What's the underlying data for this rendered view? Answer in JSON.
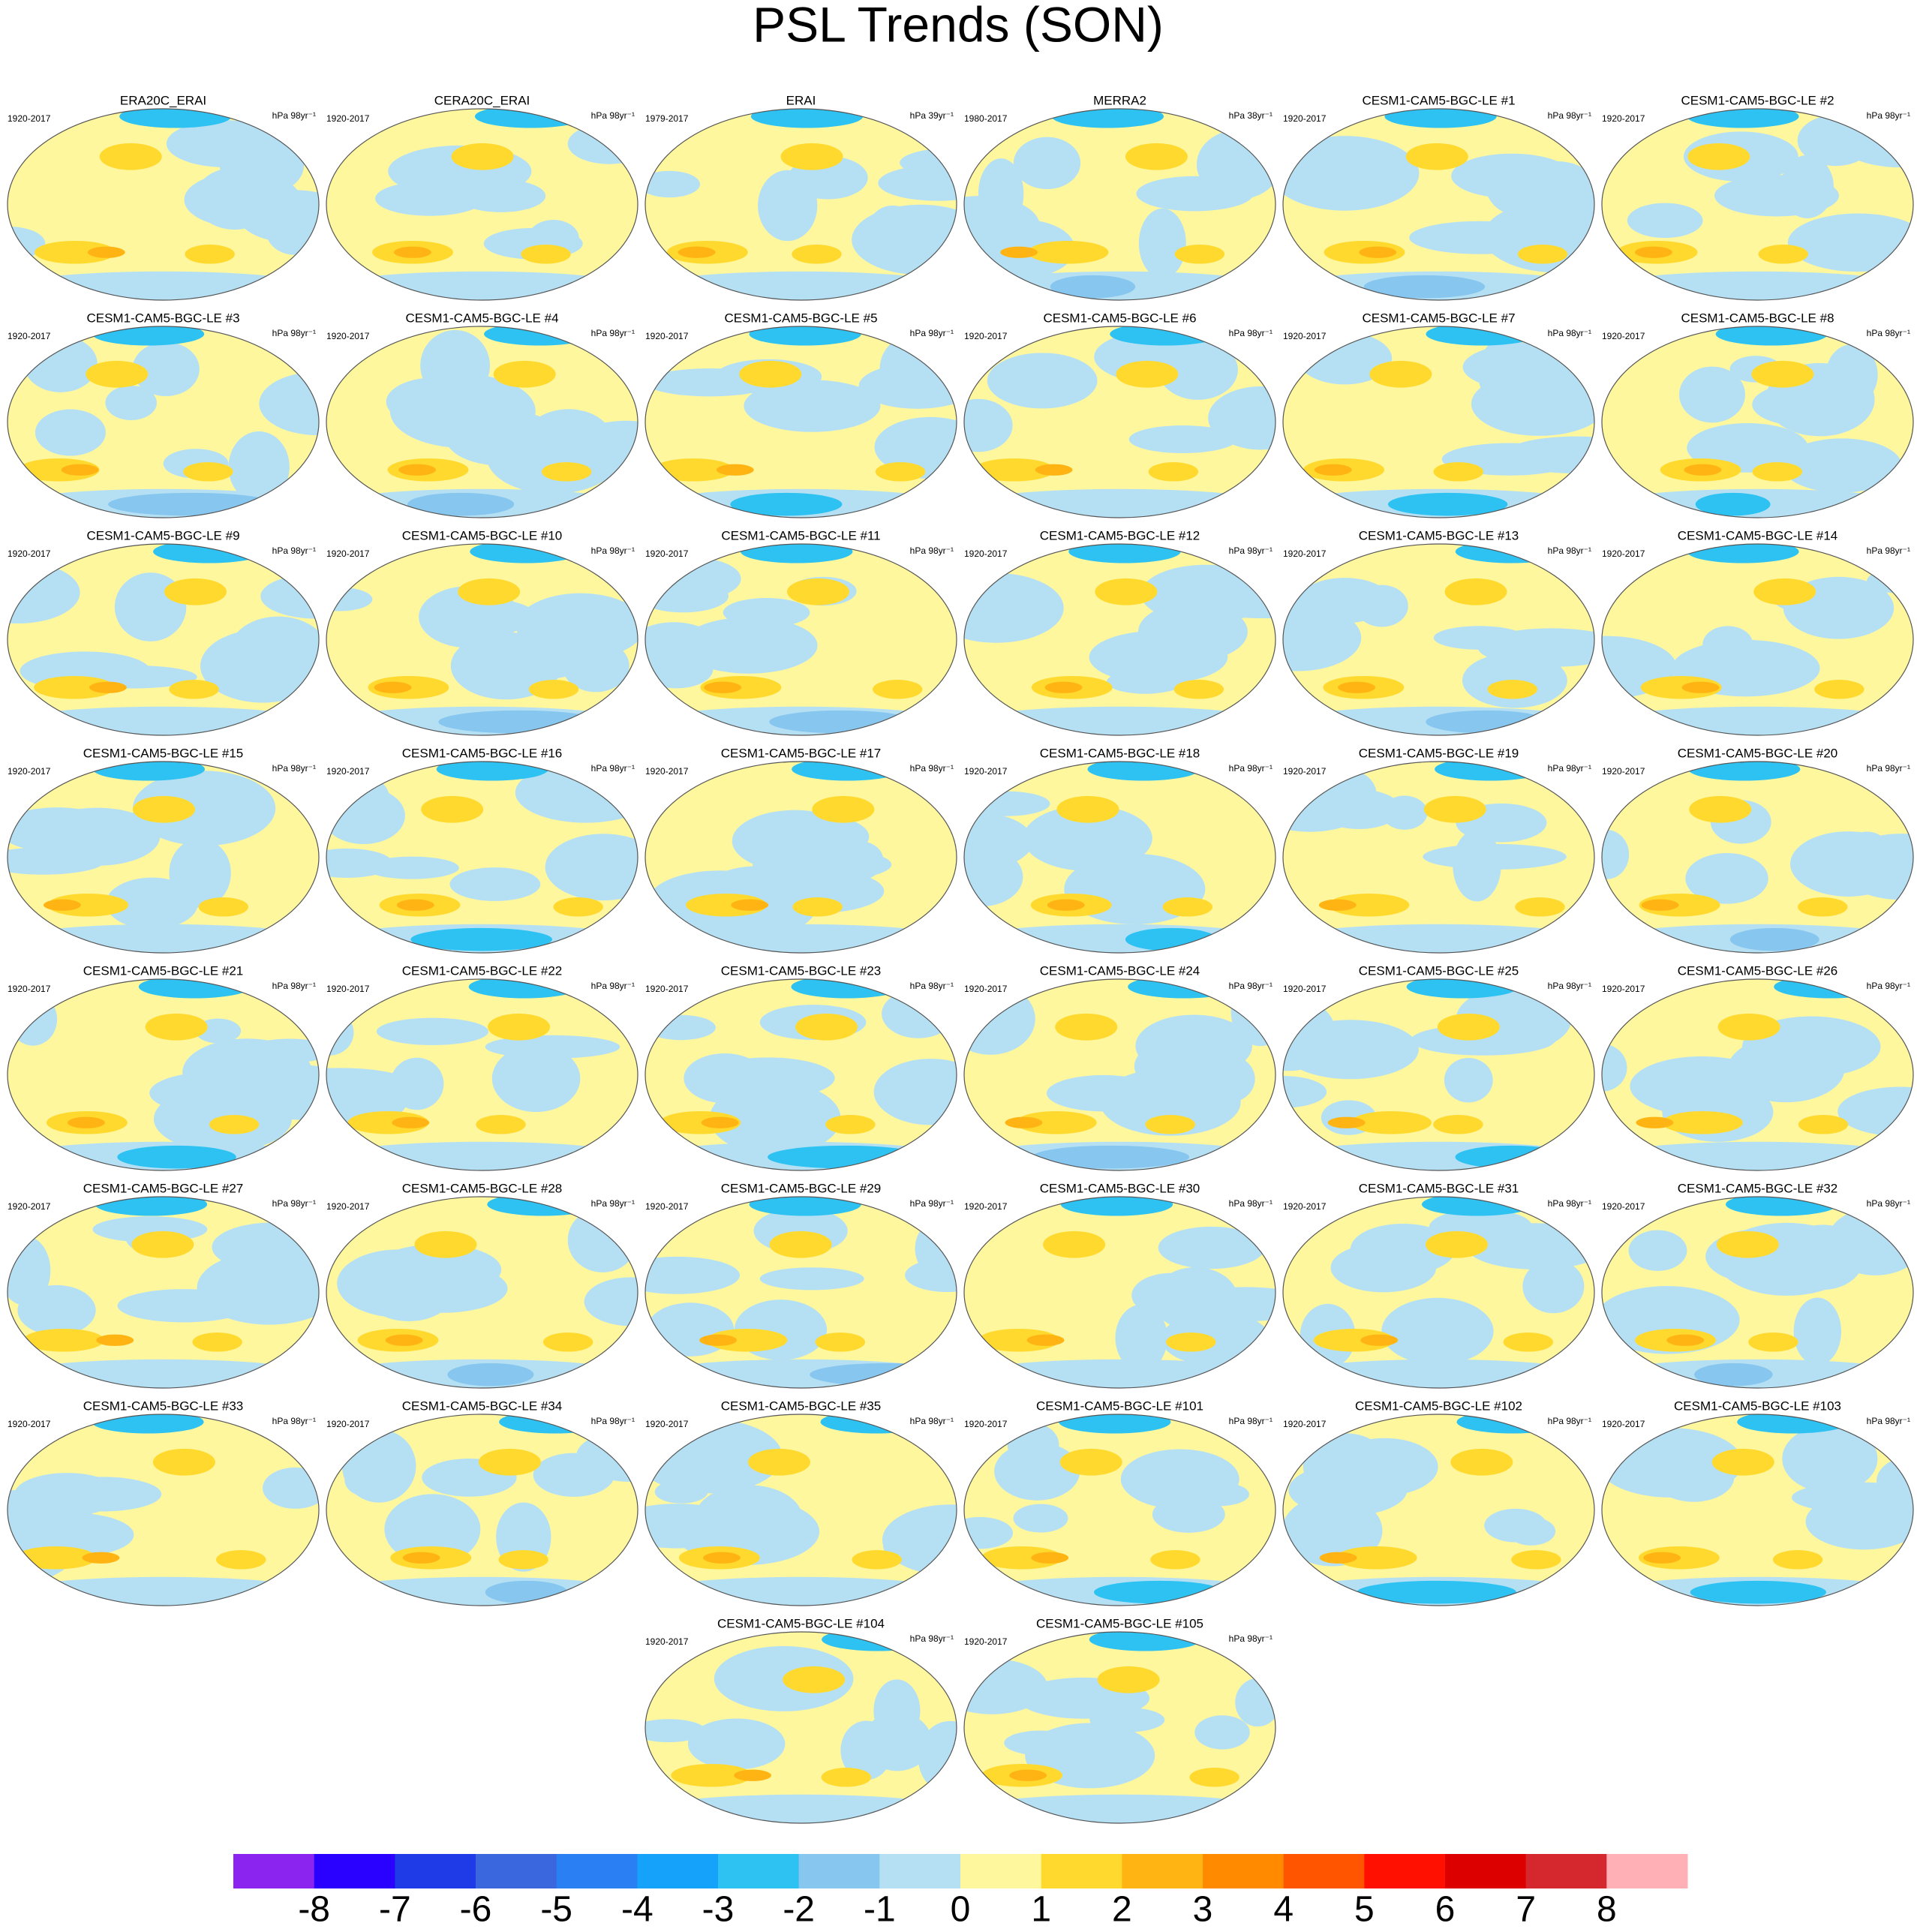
{
  "chart_data": {
    "type": "map-panels",
    "title": "PSL Trends (SON)",
    "panels": [
      {
        "title": "ERA20C_ERAI",
        "period": "1920-2017",
        "units": "hPa 98yr⁻¹"
      },
      {
        "title": "CERA20C_ERAI",
        "period": "1920-2017",
        "units": "hPa 98yr⁻¹"
      },
      {
        "title": "ERAI",
        "period": "1979-2017",
        "units": "hPa 39yr⁻¹"
      },
      {
        "title": "MERRA2",
        "period": "1980-2017",
        "units": "hPa 38yr⁻¹"
      },
      {
        "title": "CESM1-CAM5-BGC-LE #1",
        "period": "1920-2017",
        "units": "hPa 98yr⁻¹"
      },
      {
        "title": "CESM1-CAM5-BGC-LE #2",
        "period": "1920-2017",
        "units": "hPa 98yr⁻¹"
      },
      {
        "title": "CESM1-CAM5-BGC-LE #3",
        "period": "1920-2017",
        "units": "hPa 98yr⁻¹"
      },
      {
        "title": "CESM1-CAM5-BGC-LE #4",
        "period": "1920-2017",
        "units": "hPa 98yr⁻¹"
      },
      {
        "title": "CESM1-CAM5-BGC-LE #5",
        "period": "1920-2017",
        "units": "hPa 98yr⁻¹"
      },
      {
        "title": "CESM1-CAM5-BGC-LE #6",
        "period": "1920-2017",
        "units": "hPa 98yr⁻¹"
      },
      {
        "title": "CESM1-CAM5-BGC-LE #7",
        "period": "1920-2017",
        "units": "hPa 98yr⁻¹"
      },
      {
        "title": "CESM1-CAM5-BGC-LE #8",
        "period": "1920-2017",
        "units": "hPa 98yr⁻¹"
      },
      {
        "title": "CESM1-CAM5-BGC-LE #9",
        "period": "1920-2017",
        "units": "hPa 98yr⁻¹"
      },
      {
        "title": "CESM1-CAM5-BGC-LE #10",
        "period": "1920-2017",
        "units": "hPa 98yr⁻¹"
      },
      {
        "title": "CESM1-CAM5-BGC-LE #11",
        "period": "1920-2017",
        "units": "hPa 98yr⁻¹"
      },
      {
        "title": "CESM1-CAM5-BGC-LE #12",
        "period": "1920-2017",
        "units": "hPa 98yr⁻¹"
      },
      {
        "title": "CESM1-CAM5-BGC-LE #13",
        "period": "1920-2017",
        "units": "hPa 98yr⁻¹"
      },
      {
        "title": "CESM1-CAM5-BGC-LE #14",
        "period": "1920-2017",
        "units": "hPa 98yr⁻¹"
      },
      {
        "title": "CESM1-CAM5-BGC-LE #15",
        "period": "1920-2017",
        "units": "hPa 98yr⁻¹"
      },
      {
        "title": "CESM1-CAM5-BGC-LE #16",
        "period": "1920-2017",
        "units": "hPa 98yr⁻¹"
      },
      {
        "title": "CESM1-CAM5-BGC-LE #17",
        "period": "1920-2017",
        "units": "hPa 98yr⁻¹"
      },
      {
        "title": "CESM1-CAM5-BGC-LE #18",
        "period": "1920-2017",
        "units": "hPa 98yr⁻¹"
      },
      {
        "title": "CESM1-CAM5-BGC-LE #19",
        "period": "1920-2017",
        "units": "hPa 98yr⁻¹"
      },
      {
        "title": "CESM1-CAM5-BGC-LE #20",
        "period": "1920-2017",
        "units": "hPa 98yr⁻¹"
      },
      {
        "title": "CESM1-CAM5-BGC-LE #21",
        "period": "1920-2017",
        "units": "hPa 98yr⁻¹"
      },
      {
        "title": "CESM1-CAM5-BGC-LE #22",
        "period": "1920-2017",
        "units": "hPa 98yr⁻¹"
      },
      {
        "title": "CESM1-CAM5-BGC-LE #23",
        "period": "1920-2017",
        "units": "hPa 98yr⁻¹"
      },
      {
        "title": "CESM1-CAM5-BGC-LE #24",
        "period": "1920-2017",
        "units": "hPa 98yr⁻¹"
      },
      {
        "title": "CESM1-CAM5-BGC-LE #25",
        "period": "1920-2017",
        "units": "hPa 98yr⁻¹"
      },
      {
        "title": "CESM1-CAM5-BGC-LE #26",
        "period": "1920-2017",
        "units": "hPa 98yr⁻¹"
      },
      {
        "title": "CESM1-CAM5-BGC-LE #27",
        "period": "1920-2017",
        "units": "hPa 98yr⁻¹"
      },
      {
        "title": "CESM1-CAM5-BGC-LE #28",
        "period": "1920-2017",
        "units": "hPa 98yr⁻¹"
      },
      {
        "title": "CESM1-CAM5-BGC-LE #29",
        "period": "1920-2017",
        "units": "hPa 98yr⁻¹"
      },
      {
        "title": "CESM1-CAM5-BGC-LE #30",
        "period": "1920-2017",
        "units": "hPa 98yr⁻¹"
      },
      {
        "title": "CESM1-CAM5-BGC-LE #31",
        "period": "1920-2017",
        "units": "hPa 98yr⁻¹"
      },
      {
        "title": "CESM1-CAM5-BGC-LE #32",
        "period": "1920-2017",
        "units": "hPa 98yr⁻¹"
      },
      {
        "title": "CESM1-CAM5-BGC-LE #33",
        "period": "1920-2017",
        "units": "hPa 98yr⁻¹"
      },
      {
        "title": "CESM1-CAM5-BGC-LE #34",
        "period": "1920-2017",
        "units": "hPa 98yr⁻¹"
      },
      {
        "title": "CESM1-CAM5-BGC-LE #35",
        "period": "1920-2017",
        "units": "hPa 98yr⁻¹"
      },
      {
        "title": "CESM1-CAM5-BGC-LE #101",
        "period": "1920-2017",
        "units": "hPa 98yr⁻¹"
      },
      {
        "title": "CESM1-CAM5-BGC-LE #102",
        "period": "1920-2017",
        "units": "hPa 98yr⁻¹"
      },
      {
        "title": "CESM1-CAM5-BGC-LE #103",
        "period": "1920-2017",
        "units": "hPa 98yr⁻¹"
      },
      {
        "title": "CESM1-CAM5-BGC-LE #104",
        "period": "1920-2017",
        "units": "hPa 98yr⁻¹"
      },
      {
        "title": "CESM1-CAM5-BGC-LE #105",
        "period": "1920-2017",
        "units": "hPa 98yr⁻¹"
      }
    ],
    "colorbar": {
      "levels": [
        -8,
        -7,
        -6,
        -5,
        -4,
        -3,
        -2,
        -1,
        0,
        1,
        2,
        3,
        4,
        5,
        6,
        7,
        8
      ],
      "colors": [
        "#8a24ee",
        "#2a00ff",
        "#1f3be8",
        "#3a66de",
        "#2a80f2",
        "#14a2fb",
        "#2ec2f2",
        "#86c6ef",
        "#b5e0f4",
        "#fff79e",
        "#ffd92e",
        "#ffb414",
        "#ff8a00",
        "#ff5500",
        "#ff1000",
        "#dc0000",
        "#d4282e",
        "#ffb0b6"
      ]
    }
  }
}
